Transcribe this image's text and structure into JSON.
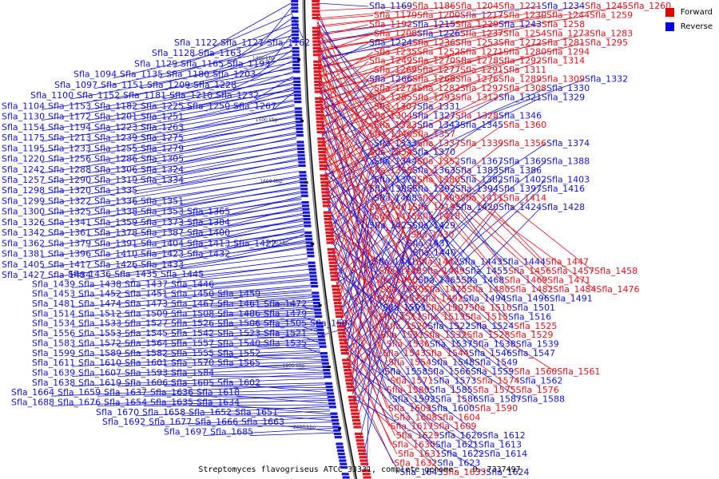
{
  "colors": {
    "forward": "#e0141e",
    "reverse": "#1414d8",
    "backbone": "#8c8c8c",
    "axis": "#000000"
  },
  "legend": [
    {
      "label": "Forward",
      "color": "#e60000"
    },
    {
      "label": "Reverse",
      "color": "#0000e6"
    }
  ],
  "caption": "Streptomyces flavogriseus ATCC 33331, complete genome. - 0..7337497",
  "scale_marks": [
    "1400 kbp",
    "1500 kbp",
    "1600 kbp",
    "1700 kbp",
    "1800 kbp",
    "1900 kbp",
    "2000 kbp"
  ],
  "left_labels": [
    [
      "Sfla_1122",
      "Sfla_1127",
      "Sfla_1162"
    ],
    [
      "Sfla_1128",
      "Sfla_1163"
    ],
    [
      "Sfla_1129",
      "Sfla_1165",
      "Sfla_1193"
    ],
    [
      "Sfla_1094",
      "Sfla_1135",
      "Sfla_1180",
      "Sfla_1203"
    ],
    [
      "Sfla_1097",
      "Sfla_1151",
      "Sfla_1209",
      "Sfla_1228"
    ],
    [
      "Sfla_1100",
      "Sfla_1152",
      "Sfla_1181",
      "Sfla_1210",
      "Sfla_1232"
    ],
    [
      "Sfla_1104",
      "Sfla_1153",
      "Sfla_1182",
      "Sfla_1225",
      "Sfla_1250",
      "Sfla_1267"
    ],
    [
      "Sfla_1130",
      "Sfla_1172",
      "Sfla_1201",
      "Sfla_1251"
    ],
    [
      "Sfla_1154",
      "Sfla_1194",
      "Sfla_1223",
      "Sfla_1263"
    ],
    [
      "Sfla_1175",
      "Sfla_1213",
      "Sfla_1239",
      "Sfla_1275"
    ],
    [
      "Sfla_1195",
      "Sfla_1233",
      "Sfla_1255",
      "Sfla_1279"
    ],
    [
      "Sfla_1220",
      "Sfla_1256",
      "Sfla_1286",
      "Sfla_1305"
    ],
    [
      "Sfla_1242",
      "Sfla_1288",
      "Sfla_1306",
      "Sfla_1324"
    ],
    [
      "Sfla_1257",
      "Sfla_1290",
      "Sfla_1319",
      "Sfla_1334"
    ],
    [
      "Sfla_1298",
      "Sfla_1320",
      "Sfla_1335"
    ],
    [
      "Sfla_1299",
      "Sfla_1322",
      "Sfla_1336",
      "Sfla_1351"
    ],
    [
      "Sfla_1300",
      "Sfla_1325",
      "Sfla_1338",
      "Sfla_1353",
      "Sfla_1365"
    ],
    [
      "Sfla_1326",
      "Sfla_1341",
      "Sfla_1359",
      "Sfla_1373",
      "Sfla_1384"
    ],
    [
      "Sfla_1342",
      "Sfla_1361",
      "Sfla_1378",
      "Sfla_1387",
      "Sfla_1400"
    ],
    [
      "Sfla_1362",
      "Sfla_1379",
      "Sfla_1391",
      "Sfla_1404",
      "Sfla_1413",
      "Sfla_1422"
    ],
    [
      "Sfla_1381",
      "Sfla_1396",
      "Sfla_1410",
      "Sfla_1423",
      "Sfla_1432"
    ],
    [
      "Sfla_1405",
      "Sfla_1417",
      "Sfla_1426",
      "Sfla_1433"
    ],
    [
      "Sfla_1427",
      "Sfla_1434"
    ],
    [
      "Sfla_1436",
      "Sfla_1435",
      "Sfla_1445"
    ],
    [
      "Sfla_1439",
      "Sfla_1438",
      "Sfla_1437",
      "Sfla_1446"
    ],
    [
      "Sfla_1453",
      "Sfla_1452",
      "Sfla_1451",
      "Sfla_1450",
      "Sfla_1459"
    ],
    [
      "Sfla_1481",
      "Sfla_1474",
      "Sfla_1473",
      "Sfla_1467",
      "Sfla_1461",
      "Sfla_1472"
    ],
    [
      "Sfla_1514",
      "Sfla_1512",
      "Sfla_1509",
      "Sfla_1508",
      "Sfla_1486",
      "Sfla_1479"
    ],
    [
      "Sfla_1534",
      "Sfla_1533",
      "Sfla_1527",
      "Sfla_1526",
      "Sfla_1506",
      "Sfla_1505",
      "Sfla_1504"
    ],
    [
      "Sfla_1556",
      "Sfla_1553",
      "Sfla_1545",
      "Sfla_1542",
      "Sfla_1523",
      "Sfla_1521"
    ],
    [
      "Sfla_1583",
      "Sfla_1572",
      "Sfla_1564",
      "Sfla_1557",
      "Sfla_1540",
      "Sfla_1535"
    ],
    [
      "Sfla_1599",
      "Sfla_1589",
      "Sfla_1582",
      "Sfla_1555",
      "Sfla_1552"
    ],
    [
      "Sfla_1611",
      "Sfla_1610",
      "Sfla_1601",
      "Sfla_1570",
      "Sfla_1565"
    ],
    [
      "Sfla_1639",
      "Sfla_1607",
      "Sfla_1593",
      "Sfla_1584"
    ],
    [
      "Sfla_1638",
      "Sfla_1619",
      "Sfla_1606",
      "Sfla_1605",
      "Sfla_1602"
    ],
    [
      "Sfla_1664",
      "Sfla_1659",
      "Sfla_1637",
      "Sfla_1636",
      "Sfla_1618"
    ],
    [
      "Sfla_1688",
      "Sfla_1676",
      "Sfla_1654",
      "Sfla_1635",
      "Sfla_1634"
    ],
    [
      "Sfla_1670",
      "Sfla_1658",
      "Sfla_1652",
      "Sfla_1651"
    ],
    [
      "Sfla_1692",
      "Sfla_1677",
      "Sfla_1666",
      "Sfla_1663"
    ],
    [
      "Sfla_1697",
      "Sfla_1685"
    ]
  ],
  "right_labels": [
    [
      [
        "Sfla_1169",
        "r"
      ],
      [
        "Sfla_1186",
        "f"
      ],
      [
        "Sfla_1204",
        "f"
      ],
      [
        "Sfla_1221",
        "f"
      ],
      [
        "Sfla_1234",
        "r"
      ],
      [
        "Sfla_1245",
        "f"
      ],
      [
        "Sfla_1260",
        "f"
      ]
    ],
    [
      [
        "Sfla_1179",
        "f"
      ],
      [
        "Sfla_1200",
        "f"
      ],
      [
        "Sfla_1217",
        "f"
      ],
      [
        "Sfla_1230",
        "f"
      ],
      [
        "Sfla_1244",
        "f"
      ],
      [
        "Sfla_1259",
        "f"
      ]
    ],
    [
      [
        "Sfla_1192",
        "f"
      ],
      [
        "Sfla_1215",
        "r"
      ],
      [
        "Sfla_1229",
        "f"
      ],
      [
        "Sfla_1243",
        "r"
      ],
      [
        "Sfla_1258",
        "f"
      ]
    ],
    [
      [
        "Sfla_1208",
        "f"
      ],
      [
        "Sfla_1226",
        "r"
      ],
      [
        "Sfla_1237",
        "f"
      ],
      [
        "Sfla_1254",
        "f"
      ],
      [
        "Sfla_1273",
        "f"
      ],
      [
        "Sfla_1283",
        "f"
      ]
    ],
    [
      [
        "Sfla_1224",
        "r"
      ],
      [
        "Sfla_1236",
        "f"
      ],
      [
        "Sfla_1253",
        "f"
      ],
      [
        "Sfla_1272",
        "f"
      ],
      [
        "Sfla_1281",
        "f"
      ],
      [
        "Sfla_1295",
        "f"
      ]
    ],
    [
      [
        "Sfla_1235",
        "f"
      ],
      [
        "Sfla_1252",
        "f"
      ],
      [
        "Sfla_1271",
        "f"
      ],
      [
        "Sfla_1280",
        "f"
      ],
      [
        "Sfla_1294",
        "f"
      ]
    ],
    [
      [
        "Sfla_1249",
        "f"
      ],
      [
        "Sfla_1270",
        "f"
      ],
      [
        "Sfla_1278",
        "f"
      ],
      [
        "Sfla_1292",
        "f"
      ],
      [
        "Sfla_1314",
        "f"
      ]
    ],
    [
      [
        "Sfla_1269",
        "f"
      ],
      [
        "Sfla_1277",
        "f"
      ],
      [
        "Sfla_1291",
        "f"
      ],
      [
        "Sfla_1311",
        "f"
      ]
    ],
    [
      [
        "Sfla_1266",
        "r"
      ],
      [
        "Sfla_1268",
        "f"
      ],
      [
        "Sfla_1276",
        "f"
      ],
      [
        "Sfla_1289",
        "f"
      ],
      [
        "Sfla_1309",
        "f"
      ],
      [
        "Sfla_1332",
        "r"
      ]
    ],
    [
      [
        "Sfla_1274",
        "f"
      ],
      [
        "Sfla_1282",
        "f"
      ],
      [
        "Sfla_1297",
        "f"
      ],
      [
        "Sfla_1308",
        "f"
      ],
      [
        "Sfla_1330",
        "r"
      ]
    ],
    [
      [
        "Sfla_1285",
        "f"
      ],
      [
        "Sfla_1293",
        "f"
      ],
      [
        "Sfla_1312",
        "f"
      ],
      [
        "Sfla_1321",
        "r"
      ],
      [
        "Sfla_1329",
        "r"
      ]
    ],
    [
      [
        "Sfla_1307",
        "f"
      ],
      [
        "Sfla_1331",
        "r"
      ]
    ],
    [
      [
        "Sfla_1304",
        "f"
      ],
      [
        "Sfla_1327",
        "r"
      ],
      [
        "Sfla_1328",
        "f"
      ],
      [
        "Sfla_1346",
        "r"
      ]
    ],
    [
      [
        "Sfla_1323",
        "f"
      ],
      [
        "Sfla_1343",
        "r"
      ],
      [
        "Sfla_1345",
        "r"
      ],
      [
        "Sfla_1360",
        "f"
      ]
    ],
    [
      [
        "Sfla_1340",
        "f"
      ],
      [
        "Sfla_1357",
        "f"
      ]
    ],
    [
      [
        "Sfla_1333",
        "r"
      ],
      [
        "Sfla_1337",
        "f"
      ],
      [
        "Sfla_1339",
        "f"
      ],
      [
        "Sfla_1356",
        "f"
      ],
      [
        "Sfla_1374",
        "r"
      ]
    ],
    [
      [
        "Sfla_1354",
        "f"
      ],
      [
        "Sfla_1370",
        "r"
      ]
    ],
    [
      [
        "Sfla_1344",
        "r"
      ],
      [
        "Sfla_1352",
        "f"
      ],
      [
        "Sfla_1367",
        "r"
      ],
      [
        "Sfla_1369",
        "r"
      ],
      [
        "Sfla_1388",
        "r"
      ]
    ],
    [
      [
        "Sfla_1358",
        "f"
      ],
      [
        "Sfla_1363",
        "r"
      ],
      [
        "Sfla_1383",
        "r"
      ],
      [
        "Sfla_1386",
        "r"
      ]
    ],
    [
      [
        "Sfla_1372",
        "r"
      ],
      [
        "Sfla_1380",
        "f"
      ],
      [
        "Sfla_1382",
        "r"
      ],
      [
        "Sfla_1402",
        "r"
      ],
      [
        "Sfla_1403",
        "r"
      ]
    ],
    [
      [
        "Sfla_1385",
        "r"
      ],
      [
        "Sfla_1392",
        "r"
      ],
      [
        "Sfla_1394",
        "r"
      ],
      [
        "Sfla_1397",
        "r"
      ],
      [
        "Sfla_1416",
        "r"
      ]
    ],
    [
      [
        "Sfla_1408",
        "r"
      ],
      [
        "Sfla_1409",
        "f"
      ],
      [
        "Sfla_1411",
        "f"
      ],
      [
        "Sfla_1414",
        "f"
      ]
    ],
    [
      [
        "Sfla_1401",
        "f"
      ],
      [
        "Sfla_1419",
        "f"
      ],
      [
        "Sfla_1420",
        "r"
      ],
      [
        "Sfla_1424",
        "r"
      ],
      [
        "Sfla_1428",
        "r"
      ]
    ],
    [
      [
        "Sfla_1415",
        "f"
      ],
      [
        "Sfla_1418",
        "f"
      ]
    ],
    [
      [
        "Sfla_1425",
        "r"
      ],
      [
        "Sfla_1429",
        "r"
      ]
    ],
    [
      [
        "Sfla_1430",
        "f"
      ]
    ],
    [
      [
        "Sfla_1431",
        "r"
      ]
    ],
    [
      [
        "Sfla_1440",
        "r"
      ]
    ],
    [
      [
        "Sfla_1441",
        "r"
      ],
      [
        "Sfla_1442",
        "f"
      ],
      [
        "Sfla_1443",
        "r"
      ],
      [
        "Sfla_1444",
        "r"
      ],
      [
        "Sfla_1447",
        "f"
      ]
    ],
    [
      [
        "Sfla_1448",
        "f"
      ],
      [
        "Sfla_1449",
        "f"
      ],
      [
        "Sfla_1455",
        "r"
      ],
      [
        "Sfla_1456",
        "f"
      ],
      [
        "Sfla_1457",
        "f"
      ],
      [
        "Sfla_1458",
        "f"
      ]
    ],
    [
      [
        "Sfla_1460",
        "f"
      ],
      [
        "Sfla_1465",
        "r"
      ],
      [
        "Sfla_1468",
        "r"
      ],
      [
        "Sfla_1469",
        "f"
      ],
      [
        "Sfla_1471",
        "f"
      ]
    ],
    [
      [
        "Sfla_1470",
        "f"
      ],
      [
        "Sfla_1475",
        "f"
      ],
      [
        "Sfla_1480",
        "f"
      ],
      [
        "Sfla_1482",
        "f"
      ],
      [
        "Sfla_1484",
        "f"
      ],
      [
        "Sfla_1476",
        "f"
      ]
    ],
    [
      [
        "Sfla_1487",
        "f"
      ],
      [
        "Sfla_1492",
        "f"
      ],
      [
        "Sfla_1494",
        "r"
      ],
      [
        "Sfla_1496",
        "r"
      ],
      [
        "Sfla_1491",
        "r"
      ]
    ],
    [
      [
        "Sfla_1503",
        "r"
      ],
      [
        "Sfla_1507",
        "f"
      ],
      [
        "Sfla_1510",
        "f"
      ],
      [
        "Sfla_1501",
        "r"
      ]
    ],
    [
      [
        "Sfla_1511",
        "f"
      ],
      [
        "Sfla_1513",
        "f"
      ],
      [
        "Sfla_1515",
        "f"
      ],
      [
        "Sfla_1516",
        "r"
      ]
    ],
    [
      [
        "Sfla_1520",
        "f"
      ],
      [
        "Sfla_1522",
        "r"
      ],
      [
        "Sfla_1524",
        "r"
      ],
      [
        "Sfla_1525",
        "f"
      ]
    ],
    [
      [
        "Sfla_1531",
        "f"
      ],
      [
        "Sfla_1532",
        "f"
      ],
      [
        "Sfla_1528",
        "f"
      ],
      [
        "Sfla_1529",
        "f"
      ]
    ],
    [
      [
        "Sfla_1536",
        "f"
      ],
      [
        "Sfla_1537",
        "r"
      ],
      [
        "Sfla_1538",
        "r"
      ],
      [
        "Sfla_1539",
        "r"
      ]
    ],
    [
      [
        "Sfla_1543",
        "f"
      ],
      [
        "Sfla_1544",
        "f"
      ],
      [
        "Sfla_1546",
        "r"
      ],
      [
        "Sfla_1547",
        "r"
      ]
    ],
    [
      [
        "Sfla_1554",
        "f"
      ],
      [
        "Sfla_1548",
        "r"
      ],
      [
        "Sfla_1549",
        "r"
      ]
    ],
    [
      [
        "Sfla_1558",
        "r"
      ],
      [
        "Sfla_1566",
        "r"
      ],
      [
        "Sfla_1559",
        "r"
      ],
      [
        "Sfla_1560",
        "f"
      ],
      [
        "Sfla_1561",
        "f"
      ]
    ],
    [
      [
        "Sfla_1571",
        "f"
      ],
      [
        "Sfla_1573",
        "r"
      ],
      [
        "Sfla_1574",
        "f"
      ],
      [
        "Sfla_1562",
        "r"
      ]
    ],
    [
      [
        "Sfla_1580",
        "f"
      ],
      [
        "Sfla_1585",
        "r"
      ],
      [
        "Sfla_1575",
        "f"
      ],
      [
        "Sfla_1576",
        "f"
      ]
    ],
    [
      [
        "Sfla_1592",
        "r"
      ],
      [
        "Sfla_1586",
        "r"
      ],
      [
        "Sfla_1587",
        "r"
      ],
      [
        "Sfla_1588",
        "r"
      ]
    ],
    [
      [
        "Sfla_1603",
        "f"
      ],
      [
        "Sfla_1600",
        "r"
      ],
      [
        "Sfla_1590",
        "f"
      ]
    ],
    [
      [
        "Sfla_1608",
        "f"
      ],
      [
        "Sfla_1604",
        "f"
      ]
    ],
    [
      [
        "Sfla_1617",
        "f"
      ],
      [
        "Sfla_1609",
        "f"
      ]
    ],
    [
      [
        "Sfla_1629",
        "f"
      ],
      [
        "Sfla_1620",
        "r"
      ],
      [
        "Sfla_1612",
        "r"
      ]
    ],
    [
      [
        "Sfla_1630",
        "f"
      ],
      [
        "Sfla_1621",
        "r"
      ],
      [
        "Sfla_1613",
        "r"
      ]
    ],
    [
      [
        "Sfla_1631",
        "f"
      ],
      [
        "Sfla_1622",
        "r"
      ],
      [
        "Sfla_1614",
        "r"
      ]
    ],
    [
      [
        "Sfla_1632",
        "f"
      ],
      [
        "Sfla_1623",
        "r"
      ]
    ],
    [
      [
        "Sfla_1643",
        "r"
      ],
      [
        "Sfla_1633",
        "f"
      ],
      [
        "Sfla_1624",
        "r"
      ]
    ]
  ]
}
